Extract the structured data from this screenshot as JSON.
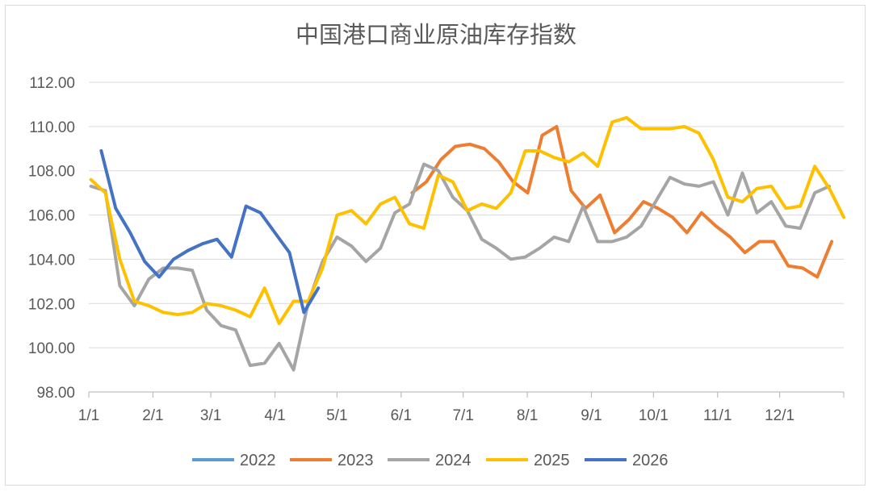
{
  "chart_data": {
    "type": "line",
    "title": "中国港口商业原油库存指数",
    "xlabel": "",
    "ylabel": "",
    "ylim": [
      98,
      112
    ],
    "yticks": [
      "98.00",
      "100.00",
      "102.00",
      "104.00",
      "106.00",
      "108.00",
      "110.00",
      "112.00"
    ],
    "xticks": [
      "1/1",
      "2/1",
      "3/1",
      "4/1",
      "5/1",
      "6/1",
      "7/1",
      "8/1",
      "9/1",
      "10/1",
      "11/1",
      "12/1"
    ],
    "grid": true,
    "legend_position": "bottom",
    "series": [
      {
        "name": "2022",
        "color": "#5B9BD5",
        "points": []
      },
      {
        "name": "2023",
        "color": "#ED7D31",
        "points": [
          [
            156.3,
            107.0
          ],
          [
            163.2,
            107.5
          ],
          [
            170.2,
            108.5
          ],
          [
            177.2,
            109.1
          ],
          [
            184.2,
            109.2
          ],
          [
            191.2,
            109.0
          ],
          [
            198.2,
            108.4
          ],
          [
            205.2,
            107.5
          ],
          [
            212.2,
            107.0
          ],
          [
            219.2,
            109.6
          ],
          [
            226.2,
            110.0
          ],
          [
            233.2,
            107.1
          ],
          [
            240.2,
            106.3
          ],
          [
            247.2,
            106.9
          ],
          [
            254.2,
            105.2
          ],
          [
            261.2,
            105.8
          ],
          [
            268.2,
            106.6
          ],
          [
            275.2,
            106.3
          ],
          [
            282.2,
            105.9
          ],
          [
            289.2,
            105.2
          ],
          [
            296.2,
            106.1
          ],
          [
            303.2,
            105.5
          ],
          [
            310.2,
            105.0
          ],
          [
            317.2,
            104.3
          ],
          [
            324.2,
            104.8
          ],
          [
            331.2,
            104.8
          ],
          [
            338.2,
            103.7
          ],
          [
            345.2,
            103.6
          ],
          [
            352.2,
            103.2
          ],
          [
            359.2,
            104.8
          ]
        ]
      },
      {
        "name": "2024",
        "color": "#A5A5A5",
        "points": [
          [
            1,
            107.3
          ],
          [
            8,
            107.1
          ],
          [
            15,
            102.8
          ],
          [
            22,
            101.9
          ],
          [
            29,
            103.1
          ],
          [
            36,
            103.6
          ],
          [
            43,
            103.6
          ],
          [
            50,
            103.5
          ],
          [
            57,
            101.7
          ],
          [
            64,
            101.0
          ],
          [
            71,
            100.8
          ],
          [
            78,
            99.2
          ],
          [
            85,
            99.3
          ],
          [
            92,
            100.2
          ],
          [
            99,
            99.0
          ],
          [
            106,
            102.0
          ],
          [
            113,
            103.9
          ],
          [
            120,
            105.0
          ],
          [
            127,
            104.6
          ],
          [
            134,
            103.9
          ],
          [
            141,
            104.5
          ],
          [
            148,
            106.1
          ],
          [
            155,
            106.5
          ],
          [
            162,
            108.3
          ],
          [
            169,
            108.0
          ],
          [
            176,
            106.8
          ],
          [
            183,
            106.2
          ],
          [
            190,
            104.9
          ],
          [
            197,
            104.5
          ],
          [
            204,
            104.0
          ],
          [
            211,
            104.1
          ],
          [
            218,
            104.5
          ],
          [
            225,
            105.0
          ],
          [
            232,
            104.8
          ],
          [
            239,
            106.4
          ],
          [
            246,
            104.8
          ],
          [
            253,
            104.8
          ],
          [
            260,
            105.0
          ],
          [
            267,
            105.5
          ],
          [
            274,
            106.6
          ],
          [
            281,
            107.7
          ],
          [
            288,
            107.4
          ],
          [
            295,
            107.3
          ],
          [
            302,
            107.5
          ],
          [
            309,
            106.0
          ],
          [
            316,
            107.9
          ],
          [
            323,
            106.1
          ],
          [
            330,
            106.6
          ],
          [
            337,
            105.5
          ],
          [
            344,
            105.4
          ],
          [
            351,
            107.0
          ],
          [
            358,
            107.3
          ]
        ]
      },
      {
        "name": "2025",
        "color": "#FFC000",
        "points": [
          [
            1,
            107.6
          ],
          [
            8,
            107.0
          ],
          [
            15,
            104.0
          ],
          [
            22,
            102.1
          ],
          [
            29,
            101.9
          ],
          [
            36,
            101.6
          ],
          [
            43,
            101.5
          ],
          [
            50,
            101.6
          ],
          [
            57,
            102.0
          ],
          [
            64,
            101.9
          ],
          [
            71,
            101.7
          ],
          [
            78,
            101.4
          ],
          [
            85,
            102.7
          ],
          [
            92,
            101.1
          ],
          [
            99,
            102.1
          ],
          [
            106,
            102.1
          ],
          [
            113,
            103.6
          ],
          [
            120,
            106.0
          ],
          [
            127,
            106.2
          ],
          [
            134,
            105.6
          ],
          [
            141,
            106.5
          ],
          [
            148,
            106.8
          ],
          [
            155,
            105.6
          ],
          [
            162,
            105.4
          ],
          [
            169,
            107.8
          ],
          [
            176,
            107.5
          ],
          [
            183,
            106.2
          ],
          [
            190,
            106.5
          ],
          [
            197,
            106.3
          ],
          [
            204,
            107.0
          ],
          [
            211,
            108.9
          ],
          [
            218,
            108.9
          ],
          [
            225,
            108.6
          ],
          [
            232,
            108.4
          ],
          [
            239,
            108.8
          ],
          [
            246,
            108.2
          ],
          [
            253,
            110.2
          ],
          [
            260,
            110.4
          ],
          [
            267,
            109.9
          ],
          [
            274,
            109.9
          ],
          [
            281,
            109.9
          ],
          [
            288,
            110.0
          ],
          [
            295,
            109.7
          ],
          [
            302,
            108.5
          ],
          [
            309,
            106.8
          ],
          [
            316,
            106.6
          ],
          [
            323,
            107.2
          ],
          [
            330,
            107.3
          ],
          [
            337,
            106.3
          ],
          [
            344,
            106.4
          ],
          [
            351,
            108.2
          ],
          [
            358,
            107.2
          ],
          [
            365,
            105.9
          ]
        ]
      },
      {
        "name": "2026",
        "color": "#4472C4",
        "points": [
          [
            6,
            108.9
          ],
          [
            13,
            106.3
          ],
          [
            20,
            105.2
          ],
          [
            27,
            103.9
          ],
          [
            34,
            103.2
          ],
          [
            41,
            104.0
          ],
          [
            48,
            104.4
          ],
          [
            55,
            104.7
          ],
          [
            62,
            104.9
          ],
          [
            69,
            104.1
          ],
          [
            76,
            106.4
          ],
          [
            83,
            106.1
          ],
          [
            90,
            105.2
          ],
          [
            97,
            104.3
          ],
          [
            104,
            101.6
          ],
          [
            111,
            102.7
          ]
        ]
      }
    ]
  }
}
